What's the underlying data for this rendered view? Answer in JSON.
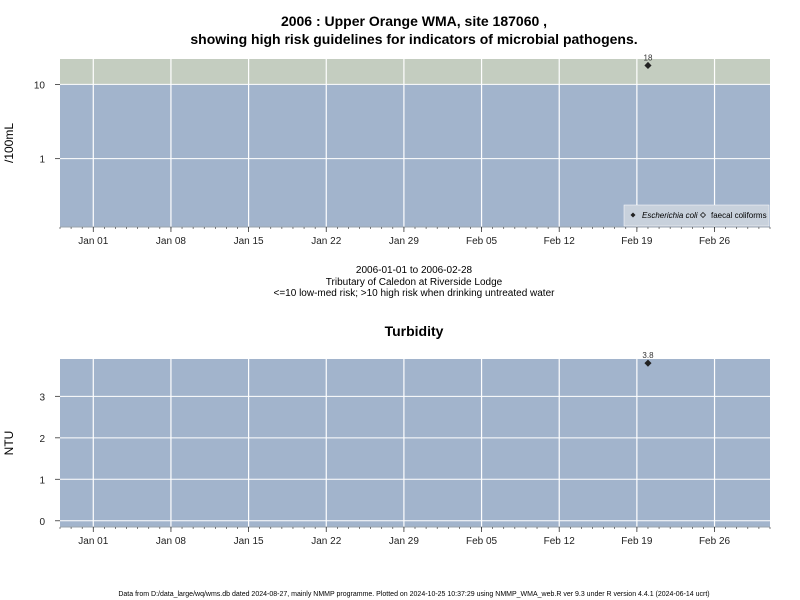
{
  "title_line1": "2006 : Upper Orange WMA, site 187060 ,",
  "title_line2": "showing high risk guidelines for indicators of microbial pathogens.",
  "subtitle_lines": [
    "2006-01-01 to 2006-02-28",
    "Tributary of Caledon at Riverside Lodge",
    "<=10 low-med risk; >10 high risk when drinking untreated water"
  ],
  "footer": "Data from D:/data_large/wq/wms.db dated 2024-08-27, mainly NMMP programme. Plotted on 2024-10-25 10:37:29 using NMMP_WMA_web.R ver 9.3 under R version 4.4.1 (2024-06-14 ucrt)",
  "colors": {
    "panel_bg": "#a2b4cc",
    "high_risk_band": "#c4cdc0",
    "grid": "#ffffff",
    "marker": "#222222"
  },
  "chart_data": [
    {
      "type": "scatter",
      "name": "microbial",
      "title": "",
      "xlabel": "",
      "ylabel": "/100mL",
      "yscale": "log",
      "xlim": [
        "2005-12-29",
        "2006-03-03"
      ],
      "ylim": [
        0.12,
        22
      ],
      "yticks": [
        1,
        10
      ],
      "ytick_labels": [
        "1",
        "10"
      ],
      "xticks": [
        "2006-01-01",
        "2006-01-08",
        "2006-01-15",
        "2006-01-22",
        "2006-01-29",
        "2006-02-05",
        "2006-02-12",
        "2006-02-19",
        "2006-02-26"
      ],
      "xtick_labels": [
        "Jan 01",
        "Jan 08",
        "Jan 15",
        "Jan 22",
        "Jan 29",
        "Feb 05",
        "Feb 12",
        "Feb 19",
        "Feb 26"
      ],
      "high_risk_threshold": 10,
      "grid": true,
      "legend_position": "bottom-right",
      "series": [
        {
          "name": "Escherichia coli",
          "marker": "filled-diamond",
          "points": [
            {
              "x": "2006-02-20",
              "y": 18,
              "label": "18"
            }
          ]
        },
        {
          "name": "faecal coliforms",
          "marker": "open-diamond",
          "points": []
        }
      ]
    },
    {
      "type": "scatter",
      "name": "turbidity",
      "title": "Turbidity",
      "xlabel": "",
      "ylabel": "NTU",
      "yscale": "linear",
      "xlim": [
        "2005-12-29",
        "2006-03-03"
      ],
      "ylim": [
        -0.15,
        3.9
      ],
      "yticks": [
        0,
        1,
        2,
        3
      ],
      "ytick_labels": [
        "0",
        "1",
        "2",
        "3"
      ],
      "xticks": [
        "2006-01-01",
        "2006-01-08",
        "2006-01-15",
        "2006-01-22",
        "2006-01-29",
        "2006-02-05",
        "2006-02-12",
        "2006-02-19",
        "2006-02-26"
      ],
      "xtick_labels": [
        "Jan 01",
        "Jan 08",
        "Jan 15",
        "Jan 22",
        "Jan 29",
        "Feb 05",
        "Feb 12",
        "Feb 19",
        "Feb 26"
      ],
      "grid": true,
      "series": [
        {
          "name": "Turbidity",
          "marker": "filled-diamond",
          "points": [
            {
              "x": "2006-02-20",
              "y": 3.8,
              "label": "3.8"
            }
          ]
        }
      ]
    }
  ]
}
